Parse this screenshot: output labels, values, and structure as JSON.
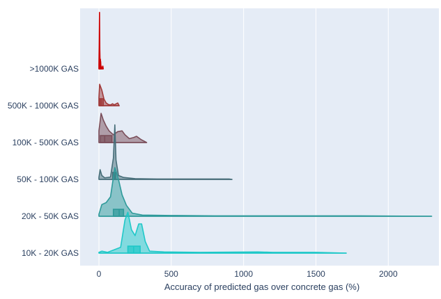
{
  "chart_data": {
    "type": "violin",
    "orientation": "horizontal",
    "side": "positive",
    "title": "",
    "xlabel": "Accuracy of predicted gas over concrete gas (%)",
    "ylabel": "",
    "xlim": [
      -130,
      2350
    ],
    "xticks": [
      0,
      500,
      1000,
      1500,
      2000
    ],
    "xtick_labels": [
      "0",
      "500",
      "1000",
      "1500",
      "2000"
    ],
    "background": "#e5ecf6",
    "grid": "white",
    "categories": [
      ">1000K GAS",
      "500K - 1000K GAS",
      "100K - 500K GAS",
      "50K - 100K GAS",
      "20K - 50K GAS",
      "10K - 20K GAS"
    ],
    "series": [
      {
        "category": ">1000K GAS",
        "line_color": "#cc0000",
        "fill_color": "#e32b2b",
        "fill_opacity": 0.5,
        "range": [
          0,
          30
        ],
        "box": {
          "q1": 2,
          "median": 5,
          "q3": 10
        },
        "density": [
          [
            0,
            0.1
          ],
          [
            2,
            0.6
          ],
          [
            4,
            1.45
          ],
          [
            6,
            0.5
          ],
          [
            8,
            0.15
          ],
          [
            10,
            0.25
          ],
          [
            13,
            0.1
          ],
          [
            16,
            0.05
          ],
          [
            20,
            0.02
          ],
          [
            24,
            0.04
          ],
          [
            27,
            0.07
          ],
          [
            30,
            0
          ]
        ]
      },
      {
        "category": "500K - 1000K GAS",
        "line_color": "#a03a3a",
        "fill_color": "#a03a3a",
        "fill_opacity": 0.5,
        "range": [
          0,
          140
        ],
        "box": {
          "q1": 5,
          "median": 15,
          "q3": 30
        },
        "density": [
          [
            0,
            0.2
          ],
          [
            5,
            0.55
          ],
          [
            10,
            0.5
          ],
          [
            20,
            0.4
          ],
          [
            35,
            0.17
          ],
          [
            50,
            0.07
          ],
          [
            65,
            0.03
          ],
          [
            80,
            0.02
          ],
          [
            95,
            0.05
          ],
          [
            105,
            0.02
          ],
          [
            120,
            0.05
          ],
          [
            130,
            0.07
          ],
          [
            140,
            0
          ]
        ]
      },
      {
        "category": "100K - 500K GAS",
        "line_color": "#7a4e5a",
        "fill_color": "#7a4e5a",
        "fill_opacity": 0.5,
        "range": [
          0,
          330
        ],
        "box": {
          "q1": 10,
          "median": 40,
          "q3": 90
        },
        "density": [
          [
            0,
            0.3
          ],
          [
            15,
            0.75
          ],
          [
            30,
            0.58
          ],
          [
            50,
            0.42
          ],
          [
            70,
            0.3
          ],
          [
            100,
            0.2
          ],
          [
            130,
            0.28
          ],
          [
            160,
            0.3
          ],
          [
            180,
            0.2
          ],
          [
            210,
            0.1
          ],
          [
            240,
            0.13
          ],
          [
            260,
            0.16
          ],
          [
            290,
            0.08
          ],
          [
            320,
            0.02
          ],
          [
            330,
            0
          ]
        ]
      },
      {
        "category": "50K - 100K GAS",
        "line_color": "#466d78",
        "fill_color": "#466d78",
        "fill_opacity": 0.5,
        "range": [
          0,
          920
        ],
        "box": {
          "q1": 95,
          "median": 110,
          "q3": 115
        },
        "density": [
          [
            0,
            0.05
          ],
          [
            8,
            0.25
          ],
          [
            20,
            0.1
          ],
          [
            40,
            0.04
          ],
          [
            80,
            0.06
          ],
          [
            100,
            0.55
          ],
          [
            110,
            1.4
          ],
          [
            118,
            0.5
          ],
          [
            135,
            0.1
          ],
          [
            170,
            0.05
          ],
          [
            250,
            0.02
          ],
          [
            400,
            0.01
          ],
          [
            600,
            0.01
          ],
          [
            750,
            0.01
          ],
          [
            900,
            0.01
          ],
          [
            920,
            0
          ]
        ]
      },
      {
        "category": "20K - 50K GAS",
        "line_color": "#2e9a9a",
        "fill_color": "#2e9a9a",
        "fill_opacity": 0.5,
        "range": [
          0,
          2300
        ],
        "box": {
          "q1": 100,
          "median": 140,
          "q3": 170
        },
        "density": [
          [
            0,
            0.05
          ],
          [
            20,
            0.3
          ],
          [
            50,
            0.35
          ],
          [
            80,
            0.5
          ],
          [
            110,
            1.25
          ],
          [
            135,
            0.95
          ],
          [
            160,
            0.55
          ],
          [
            190,
            0.28
          ],
          [
            230,
            0.08
          ],
          [
            300,
            0.03
          ],
          [
            500,
            0.02
          ],
          [
            800,
            0.01
          ],
          [
            1200,
            0.01
          ],
          [
            1800,
            0.01
          ],
          [
            2300,
            0
          ]
        ]
      },
      {
        "category": "10K - 20K GAS",
        "line_color": "#1fc8c8",
        "fill_color": "#1fc8c8",
        "fill_opacity": 0.5,
        "range": [
          0,
          1710
        ],
        "box": {
          "q1": 200,
          "median": 240,
          "q3": 285
        },
        "density": [
          [
            0,
            0.02
          ],
          [
            20,
            0.05
          ],
          [
            60,
            0.02
          ],
          [
            150,
            0.15
          ],
          [
            180,
            0.85
          ],
          [
            200,
            1.05
          ],
          [
            225,
            0.6
          ],
          [
            250,
            0.45
          ],
          [
            275,
            0.75
          ],
          [
            295,
            0.75
          ],
          [
            320,
            0.3
          ],
          [
            350,
            0.05
          ],
          [
            450,
            0.03
          ],
          [
            700,
            0.02
          ],
          [
            1100,
            0.03
          ],
          [
            1200,
            0.02
          ],
          [
            1500,
            0.02
          ],
          [
            1710,
            0
          ]
        ]
      }
    ]
  }
}
